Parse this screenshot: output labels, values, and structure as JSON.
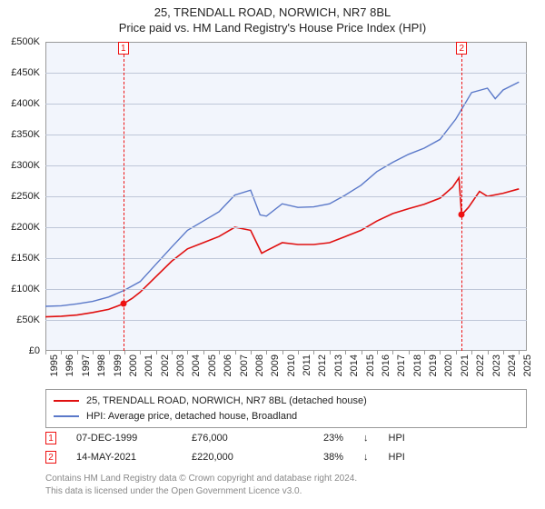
{
  "title": {
    "line1": "25, TRENDALL ROAD, NORWICH, NR7 8BL",
    "line2": "Price paid vs. HM Land Registry's House Price Index (HPI)"
  },
  "chart": {
    "type": "line",
    "background_color": "#f2f5fc",
    "grid_color": "#bfc7d8",
    "border_color": "#999999",
    "x_domain": [
      1995,
      2025.5
    ],
    "y_domain": [
      0,
      500000
    ],
    "y_ticks": [
      0,
      50000,
      100000,
      150000,
      200000,
      250000,
      300000,
      350000,
      400000,
      450000,
      500000
    ],
    "y_tick_labels": [
      "£0",
      "£50K",
      "£100K",
      "£150K",
      "£200K",
      "£250K",
      "£300K",
      "£350K",
      "£400K",
      "£450K",
      "£500K"
    ],
    "x_ticks": [
      1995,
      1996,
      1997,
      1998,
      1999,
      2000,
      2001,
      2002,
      2003,
      2004,
      2005,
      2006,
      2007,
      2008,
      2009,
      2010,
      2011,
      2012,
      2013,
      2014,
      2015,
      2016,
      2017,
      2018,
      2019,
      2020,
      2021,
      2022,
      2023,
      2024,
      2025
    ],
    "series": [
      {
        "name": "price_paid",
        "label": "25, TRENDALL ROAD, NORWICH, NR7 8BL (detached house)",
        "color": "#e01010",
        "stroke_width": 1.6,
        "data": [
          [
            1995,
            55000
          ],
          [
            1996,
            56000
          ],
          [
            1997,
            58000
          ],
          [
            1998,
            62000
          ],
          [
            1999,
            67000
          ],
          [
            1999.94,
            76000
          ],
          [
            2000.5,
            85000
          ],
          [
            2001,
            95000
          ],
          [
            2002,
            120000
          ],
          [
            2003,
            145000
          ],
          [
            2004,
            165000
          ],
          [
            2005,
            175000
          ],
          [
            2006,
            185000
          ],
          [
            2007,
            200000
          ],
          [
            2008,
            195000
          ],
          [
            2008.7,
            158000
          ],
          [
            2009,
            162000
          ],
          [
            2010,
            175000
          ],
          [
            2011,
            172000
          ],
          [
            2012,
            172000
          ],
          [
            2013,
            175000
          ],
          [
            2014,
            185000
          ],
          [
            2015,
            195000
          ],
          [
            2016,
            210000
          ],
          [
            2017,
            222000
          ],
          [
            2018,
            230000
          ],
          [
            2019,
            237000
          ],
          [
            2020,
            247000
          ],
          [
            2020.8,
            265000
          ],
          [
            2021.2,
            280000
          ],
          [
            2021.37,
            220000
          ],
          [
            2021.8,
            232000
          ],
          [
            2022.5,
            258000
          ],
          [
            2023,
            250000
          ],
          [
            2024,
            255000
          ],
          [
            2025,
            262000
          ]
        ]
      },
      {
        "name": "hpi",
        "label": "HPI: Average price, detached house, Broadland",
        "color": "#5b79c9",
        "stroke_width": 1.4,
        "data": [
          [
            1995,
            72000
          ],
          [
            1996,
            73000
          ],
          [
            1997,
            76000
          ],
          [
            1998,
            80000
          ],
          [
            1999,
            87000
          ],
          [
            2000,
            98000
          ],
          [
            2001,
            112000
          ],
          [
            2002,
            140000
          ],
          [
            2003,
            168000
          ],
          [
            2004,
            195000
          ],
          [
            2005,
            210000
          ],
          [
            2006,
            225000
          ],
          [
            2007,
            252000
          ],
          [
            2008,
            260000
          ],
          [
            2008.6,
            220000
          ],
          [
            2009,
            218000
          ],
          [
            2010,
            238000
          ],
          [
            2011,
            232000
          ],
          [
            2012,
            233000
          ],
          [
            2013,
            238000
          ],
          [
            2014,
            252000
          ],
          [
            2015,
            268000
          ],
          [
            2016,
            290000
          ],
          [
            2017,
            305000
          ],
          [
            2018,
            318000
          ],
          [
            2019,
            328000
          ],
          [
            2020,
            342000
          ],
          [
            2021,
            375000
          ],
          [
            2022,
            418000
          ],
          [
            2023,
            425000
          ],
          [
            2023.5,
            408000
          ],
          [
            2024,
            422000
          ],
          [
            2025,
            435000
          ]
        ]
      }
    ],
    "sale_markers": [
      {
        "n": "1",
        "x": 1999.94,
        "price_y": 76000
      },
      {
        "n": "2",
        "x": 2021.37,
        "price_y": 220000
      }
    ]
  },
  "legend": {
    "row1_label": "25, TRENDALL ROAD, NORWICH, NR7 8BL (detached house)",
    "row2_label": "HPI: Average price, detached house, Broadland"
  },
  "sales": [
    {
      "n": "1",
      "date": "07-DEC-1999",
      "price": "£76,000",
      "pct": "23%",
      "arrow": "↓",
      "suffix": "HPI"
    },
    {
      "n": "2",
      "date": "14-MAY-2021",
      "price": "£220,000",
      "pct": "38%",
      "arrow": "↓",
      "suffix": "HPI"
    }
  ],
  "footer": {
    "line1": "Contains HM Land Registry data © Crown copyright and database right 2024.",
    "line2": "This data is licensed under the Open Government Licence v3.0."
  },
  "colors": {
    "marker_border": "#e01010",
    "text": "#222222",
    "muted": "#888888"
  }
}
